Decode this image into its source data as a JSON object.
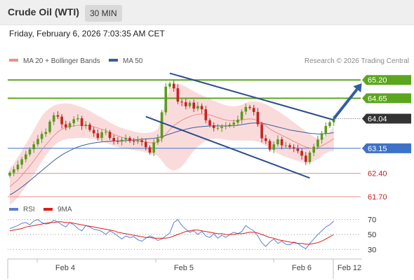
{
  "header": {
    "title": "Crude Oil (WTI)",
    "timeframe": "30 MIN"
  },
  "datetime": "Friday, February 6, 2026 7:03:35 AM CET",
  "credit": "Research © 2026 Trading Central",
  "colors": {
    "resistance": "#5ca61e",
    "support": "#f28a8a",
    "pivot": "#3d72c8",
    "price_box": "#333333",
    "channel": "#2b4c8c",
    "bollinger_fill": "#f8cfcf",
    "ma20": "#ee8b8b",
    "ma50": "#3b5da0",
    "candle_up": "#5a9a1c",
    "candle_down": "#c8211f",
    "rsi": "#5b7fd6",
    "rsi_ma": "#e01b1b",
    "arrow": "#2f5fa3"
  },
  "chart_data": [
    {
      "type": "candlestick",
      "legend": [
        {
          "label": "MA 20 + Bollinger Bands",
          "color": "#f28a8a"
        },
        {
          "label": "MA 50",
          "color": "#3b5da0"
        }
      ],
      "ylim": [
        61.3,
        65.75
      ],
      "x_tick_labels": [
        "Feb 4",
        "Feb 5",
        "Feb 6",
        "Feb 12"
      ],
      "levels": [
        {
          "value": 65.2,
          "label": "65.20",
          "kind": "resistance"
        },
        {
          "value": 64.65,
          "label": "64.65",
          "kind": "resistance"
        },
        {
          "value": 64.04,
          "label": "64.04",
          "kind": "last_price"
        },
        {
          "value": 63.15,
          "label": "63.15",
          "kind": "pivot"
        },
        {
          "value": 62.4,
          "label": "62.40",
          "kind": "support"
        },
        {
          "value": 61.7,
          "label": "61.70",
          "kind": "support"
        }
      ],
      "price_series": {
        "open": [
          62.33,
          62.42,
          62.52,
          62.66,
          62.82,
          62.97,
          63.12,
          63.27,
          63.43,
          63.58,
          63.64,
          63.95,
          64.14,
          64.1,
          63.87,
          63.78,
          63.9,
          64.02,
          64.05,
          63.82,
          63.86,
          63.7,
          63.6,
          63.46,
          63.63,
          63.64,
          63.46,
          63.37,
          63.35,
          63.41,
          63.46,
          63.37,
          63.35,
          63.39,
          63.34,
          63.18,
          63.02,
          63.33,
          63.45,
          64.23,
          65.0,
          65.09,
          64.95,
          64.55,
          64.53,
          64.41,
          64.52,
          64.34,
          64.42,
          64.32,
          63.99,
          63.84,
          63.76,
          63.76,
          63.8,
          63.83,
          63.86,
          63.92,
          64.01,
          64.25,
          64.39,
          64.36,
          64.24,
          63.87,
          63.45,
          63.37,
          63.11,
          63.27,
          63.42,
          63.24,
          63.24,
          63.18,
          63.14,
          63.07,
          62.93,
          62.74,
          63.02,
          63.2,
          63.41,
          63.6,
          63.82,
          63.93
        ],
        "close": [
          62.42,
          62.52,
          62.66,
          62.82,
          62.97,
          63.12,
          63.27,
          63.43,
          63.58,
          63.64,
          63.95,
          64.14,
          64.1,
          63.87,
          63.78,
          63.9,
          64.02,
          64.05,
          63.82,
          63.86,
          63.7,
          63.6,
          63.46,
          63.63,
          63.64,
          63.46,
          63.37,
          63.35,
          63.41,
          63.46,
          63.37,
          63.35,
          63.39,
          63.34,
          63.18,
          63.02,
          63.33,
          63.45,
          64.23,
          65.0,
          65.09,
          64.95,
          64.55,
          64.53,
          64.41,
          64.52,
          64.34,
          64.42,
          64.32,
          63.99,
          63.84,
          63.76,
          63.76,
          63.8,
          63.83,
          63.86,
          63.92,
          64.01,
          64.25,
          64.39,
          64.36,
          64.24,
          63.87,
          63.45,
          63.37,
          63.11,
          63.27,
          63.42,
          63.24,
          63.24,
          63.18,
          63.14,
          63.07,
          62.93,
          62.74,
          63.02,
          63.2,
          63.41,
          63.6,
          63.82,
          63.93,
          64.04
        ]
      },
      "ma20": [
        62.0,
        62.1,
        62.2,
        62.34,
        62.48,
        62.62,
        62.78,
        62.94,
        63.1,
        63.25,
        63.39,
        63.53,
        63.64,
        63.72,
        63.77,
        63.8,
        63.82,
        63.84,
        63.84,
        63.83,
        63.82,
        63.8,
        63.76,
        63.72,
        63.68,
        63.62,
        63.57,
        63.52,
        63.48,
        63.45,
        63.42,
        63.39,
        63.37,
        63.36,
        63.34,
        63.32,
        63.31,
        63.33,
        63.43,
        63.57,
        63.71,
        63.83,
        63.92,
        63.99,
        64.05,
        64.1,
        64.14,
        64.17,
        64.18,
        64.17,
        64.15,
        64.11,
        64.07,
        64.03,
        64.0,
        63.98,
        63.97,
        63.98,
        64.0,
        64.02,
        64.03,
        64.02,
        63.98,
        63.91,
        63.82,
        63.73,
        63.66,
        63.6,
        63.54,
        63.48,
        63.42,
        63.36,
        63.3,
        63.24,
        63.19,
        63.16,
        63.15,
        63.17,
        63.22,
        63.29,
        63.36,
        63.44
      ],
      "bb_upper": [
        62.55,
        62.7,
        62.88,
        63.08,
        63.28,
        63.48,
        63.7,
        63.92,
        64.12,
        64.26,
        64.36,
        64.43,
        64.47,
        64.49,
        64.5,
        64.49,
        64.46,
        64.42,
        64.38,
        64.33,
        64.27,
        64.2,
        64.13,
        64.07,
        64.0,
        63.93,
        63.86,
        63.8,
        63.76,
        63.72,
        63.69,
        63.66,
        63.63,
        63.61,
        63.61,
        63.62,
        63.65,
        63.72,
        64.15,
        64.6,
        64.92,
        65.06,
        65.09,
        65.06,
        65.0,
        64.93,
        64.86,
        64.8,
        64.74,
        64.68,
        64.63,
        64.58,
        64.53,
        64.48,
        64.44,
        64.42,
        64.41,
        64.42,
        64.46,
        64.51,
        64.56,
        64.56,
        64.55,
        64.52,
        64.47,
        64.41,
        64.34,
        64.27,
        64.19,
        64.11,
        64.02,
        63.93,
        63.84,
        63.75,
        63.66,
        63.58,
        63.5,
        63.45,
        63.45,
        63.52,
        63.65,
        63.82
      ],
      "bb_lower": [
        61.45,
        61.55,
        61.68,
        61.84,
        62.0,
        62.18,
        62.36,
        62.56,
        62.76,
        62.94,
        63.1,
        63.22,
        63.32,
        63.38,
        63.42,
        63.44,
        63.45,
        63.46,
        63.46,
        63.46,
        63.45,
        63.43,
        63.4,
        63.36,
        63.32,
        63.27,
        63.23,
        63.19,
        63.16,
        63.14,
        63.12,
        63.1,
        63.08,
        63.06,
        63.03,
        63.0,
        62.96,
        62.92,
        62.78,
        62.62,
        62.52,
        62.48,
        62.52,
        62.6,
        62.75,
        62.92,
        63.08,
        63.2,
        63.3,
        63.37,
        63.42,
        63.44,
        63.44,
        63.43,
        63.41,
        63.39,
        63.38,
        63.38,
        63.38,
        63.38,
        63.38,
        63.37,
        63.35,
        63.3,
        63.23,
        63.15,
        63.07,
        63.0,
        62.94,
        62.89,
        62.85,
        62.81,
        62.77,
        62.74,
        62.72,
        62.72,
        62.76,
        62.82,
        62.92,
        63.0,
        63.06,
        63.06
      ],
      "ma50": [
        61.75,
        61.82,
        61.9,
        61.99,
        62.08,
        62.18,
        62.28,
        62.38,
        62.48,
        62.58,
        62.68,
        62.78,
        62.87,
        62.95,
        63.02,
        63.08,
        63.14,
        63.19,
        63.23,
        63.26,
        63.29,
        63.31,
        63.33,
        63.34,
        63.35,
        63.36,
        63.37,
        63.37,
        63.37,
        63.38,
        63.39,
        63.4,
        63.41,
        63.42,
        63.43,
        63.44,
        63.45,
        63.47,
        63.5,
        63.54,
        63.58,
        63.62,
        63.66,
        63.69,
        63.72,
        63.75,
        63.77,
        63.79,
        63.8,
        63.81,
        63.82,
        63.82,
        63.82,
        63.82,
        63.82,
        63.82,
        63.83,
        63.84,
        63.86,
        63.88,
        63.9,
        63.91,
        63.91,
        63.9,
        63.88,
        63.85,
        63.82,
        63.79,
        63.76,
        63.73,
        63.7,
        63.68,
        63.66,
        63.64,
        63.62,
        63.6,
        63.59,
        63.58,
        63.58,
        63.59,
        63.6,
        63.62
      ],
      "channel": {
        "upper": {
          "from": {
            "bar": 40,
            "price": 65.4
          },
          "to": {
            "bar": 81,
            "price": 64.0
          }
        },
        "lower": {
          "from": {
            "bar": 34,
            "price": 64.1
          },
          "to": {
            "bar": 75,
            "price": 62.26
          }
        }
      },
      "forecast_arrow": {
        "from": {
          "bar": 81,
          "price": 64.04
        },
        "to": {
          "bar": 88,
          "price": 65.1
        }
      }
    },
    {
      "type": "line",
      "legend": [
        {
          "label": "RSI",
          "color": "#5b7fd6"
        },
        {
          "label": "9MA",
          "color": "#e01b1b"
        }
      ],
      "ylim": [
        20,
        80
      ],
      "y_ticks": [
        30,
        50,
        70
      ],
      "series": [
        {
          "name": "RSI",
          "values": [
            58,
            60,
            62,
            65,
            66,
            63,
            68,
            70,
            66,
            64,
            65,
            69,
            67,
            63,
            60,
            66,
            63,
            58,
            55,
            62,
            60,
            57,
            56,
            54,
            50,
            55,
            52,
            48,
            44,
            48,
            46,
            47,
            43,
            41,
            45,
            48,
            46,
            42,
            44,
            48,
            52,
            66,
            70,
            62,
            57,
            53,
            55,
            50,
            54,
            48,
            46,
            51,
            45,
            49,
            46,
            50,
            53,
            51,
            54,
            62,
            58,
            55,
            48,
            39,
            34,
            40,
            44,
            38,
            41,
            37,
            36,
            40,
            38,
            34,
            31,
            38,
            44,
            50,
            55,
            60,
            63,
            68
          ]
        },
        {
          "name": "9MA",
          "values": [
            55,
            56,
            57,
            58,
            60,
            61,
            62,
            63,
            64,
            65,
            66,
            66,
            67,
            67,
            66,
            66,
            65,
            64,
            63,
            62,
            61,
            60,
            59,
            58,
            57,
            56,
            55,
            53,
            52,
            51,
            50,
            49,
            48,
            47,
            46,
            46,
            45,
            45,
            45,
            45,
            46,
            48,
            50,
            52,
            54,
            55,
            56,
            56,
            55,
            54,
            53,
            52,
            51,
            51,
            50,
            50,
            50,
            51,
            51,
            52,
            53,
            53,
            52,
            50,
            48,
            46,
            45,
            43,
            42,
            41,
            40,
            39,
            38,
            38,
            37,
            37,
            38,
            39,
            41,
            44,
            47,
            50
          ]
        }
      ]
    }
  ]
}
